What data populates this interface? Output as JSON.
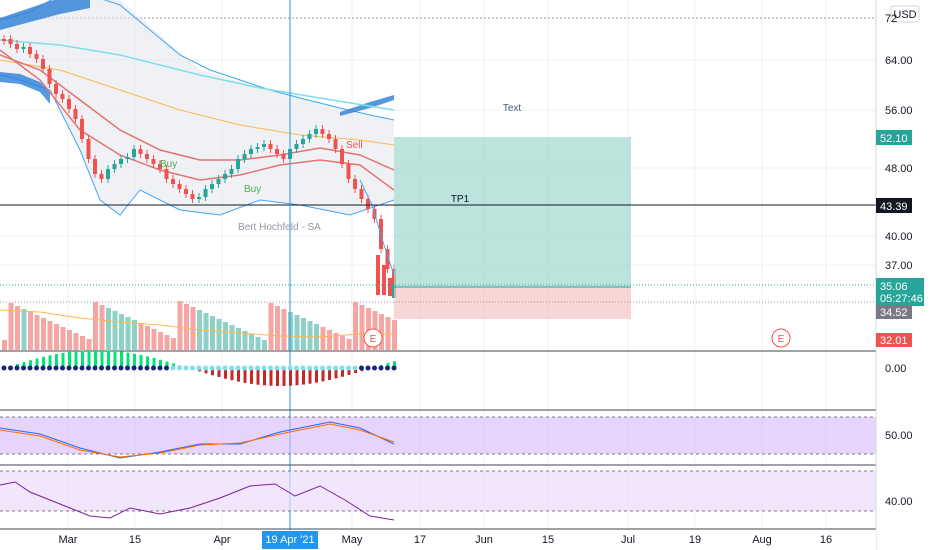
{
  "header": {
    "currency": "USD"
  },
  "price_axis": {
    "ticks": [
      "72.00",
      "64.00",
      "56.00",
      "52.10",
      "48.00",
      "43.39",
      "40.00",
      "37.00",
      "35.06",
      "34.52",
      "32.01"
    ],
    "labels": [
      "64.00",
      "56.00",
      "48.00",
      "40.00",
      "37.00"
    ],
    "tags": {
      "target": "52.10",
      "line": "43.39",
      "last": "35.06",
      "countdown": "05:27:46",
      "prev": "34.52",
      "stop": "32.01"
    }
  },
  "annotations": {
    "text_label": "Text",
    "tp_label": "TP1",
    "buy1": "Buy",
    "buy2": "Buy",
    "sell": "Sell",
    "author": "Bert Hochfeld - SA",
    "earnings": "E"
  },
  "macd_axis": {
    "label": "0.00"
  },
  "stoch_axis": {
    "label": "50.00"
  },
  "rsi_axis": {
    "label": "40.00"
  },
  "time_axis": {
    "labels": [
      "Mar",
      "15",
      "Apr",
      "19 Apr '21",
      "May",
      "17",
      "Jun",
      "15",
      "Jul",
      "19",
      "Aug",
      "16"
    ],
    "crosshair_label": "19 Apr '21"
  },
  "colors": {
    "up": "#26a69a",
    "down": "#ef5350",
    "target_zone": "#9fd9cd",
    "stop_zone": "#f8c3c3",
    "crosshair": "#2196f3",
    "blue_tag": "#2196f3"
  }
}
